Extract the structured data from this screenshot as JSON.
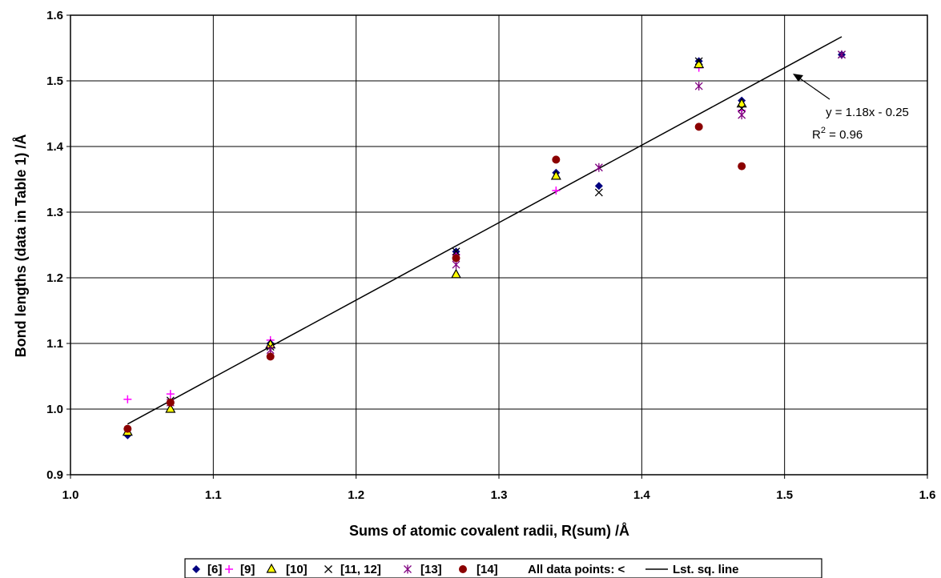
{
  "chart_data": {
    "type": "scatter",
    "title": "",
    "xlabel": "Sums of atomic covalent radii, R(sum)   /Å",
    "ylabel": "Bond lengths (data in Table 1)   /Å",
    "xlim": [
      1.0,
      1.6
    ],
    "ylim": [
      0.9,
      1.6
    ],
    "x_ticks": [
      "1.0",
      "1.1",
      "1.2",
      "1.3",
      "1.4",
      "1.5",
      "1.6"
    ],
    "y_ticks": [
      "0.9",
      "1.0",
      "1.1",
      "1.2",
      "1.3",
      "1.4",
      "1.5",
      "1.6"
    ],
    "grid": true,
    "legend_position": "bottom",
    "series": [
      {
        "name": "[6]",
        "marker": "diamond",
        "color": "#000080",
        "x": [
          1.04,
          1.07,
          1.14,
          1.27,
          1.34,
          1.37,
          1.44,
          1.47,
          1.54
        ],
        "y": [
          0.96,
          1.01,
          1.1,
          1.24,
          1.36,
          1.34,
          1.53,
          1.47,
          1.54
        ]
      },
      {
        "name": "[9]",
        "marker": "plus",
        "color": "#ff00ff",
        "x": [
          1.04,
          1.07,
          1.14,
          1.27,
          1.34,
          1.44,
          1.47
        ],
        "y": [
          1.015,
          1.023,
          1.105,
          1.235,
          1.333,
          1.52,
          1.455
        ]
      },
      {
        "name": "[10]",
        "marker": "triangle",
        "color": "#000000",
        "fill": "#ffff00",
        "x": [
          1.04,
          1.07,
          1.14,
          1.27,
          1.34,
          1.44,
          1.47
        ],
        "y": [
          0.965,
          1.0,
          1.098,
          1.205,
          1.355,
          1.525,
          1.465
        ]
      },
      {
        "name": "[11, 12]",
        "marker": "x",
        "color": "#000000",
        "x": [
          1.07,
          1.14,
          1.27,
          1.37,
          1.44,
          1.47,
          1.54
        ],
        "y": [
          1.013,
          1.095,
          1.24,
          1.33,
          1.53,
          1.458,
          1.54
        ]
      },
      {
        "name": "[13]",
        "marker": "star",
        "color": "#800080",
        "x": [
          1.07,
          1.14,
          1.27,
          1.37,
          1.44,
          1.47,
          1.54
        ],
        "y": [
          1.01,
          1.09,
          1.22,
          1.368,
          1.492,
          1.448,
          1.54
        ]
      },
      {
        "name": "[14]",
        "marker": "circle",
        "color": "#8b0000",
        "x": [
          1.04,
          1.07,
          1.14,
          1.27,
          1.34,
          1.44,
          1.47
        ],
        "y": [
          0.97,
          1.01,
          1.08,
          1.23,
          1.38,
          1.43,
          1.37
        ]
      }
    ],
    "fit_line": {
      "name": "Lst. sq. line",
      "slope": 1.18,
      "intercept": -0.25,
      "x_range": [
        1.04,
        1.54
      ],
      "color": "#000000"
    },
    "annotation": {
      "equation": "y = 1.18x - 0.25",
      "r2_label": "R",
      "r2_sup": "2",
      "r2_value": " = 0.96"
    },
    "legend_label_all": "All data points: <"
  }
}
